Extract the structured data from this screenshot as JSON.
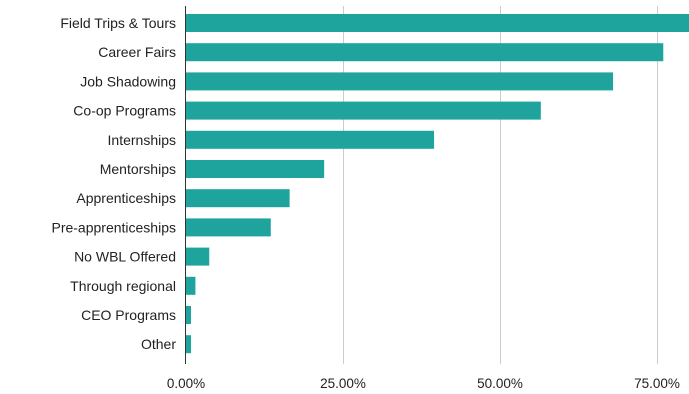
{
  "chart_data": {
    "type": "bar",
    "orientation": "horizontal",
    "categories": [
      "Field Trips & Tours",
      "Career Fairs",
      "Job Shadowing",
      "Co-op Programs",
      "Internships",
      "Mentorships",
      "Apprenticeships",
      "Pre-apprenticeships",
      "No WBL Offered",
      "Through regional",
      "CEO Programs",
      "Other"
    ],
    "values": [
      0.81,
      0.76,
      0.68,
      0.565,
      0.395,
      0.22,
      0.165,
      0.135,
      0.037,
      0.015,
      0.008,
      0.008
    ],
    "xlim": [
      0,
      0.81
    ],
    "x_ticks": [
      0,
      0.25,
      0.5,
      0.75
    ],
    "x_tick_labels": [
      "0.00%",
      "25.00%",
      "50.00%",
      "75.00%"
    ],
    "grid": true,
    "legend": "none",
    "bar_color": "#1fa39d",
    "title": "",
    "xlabel": "",
    "ylabel": ""
  }
}
